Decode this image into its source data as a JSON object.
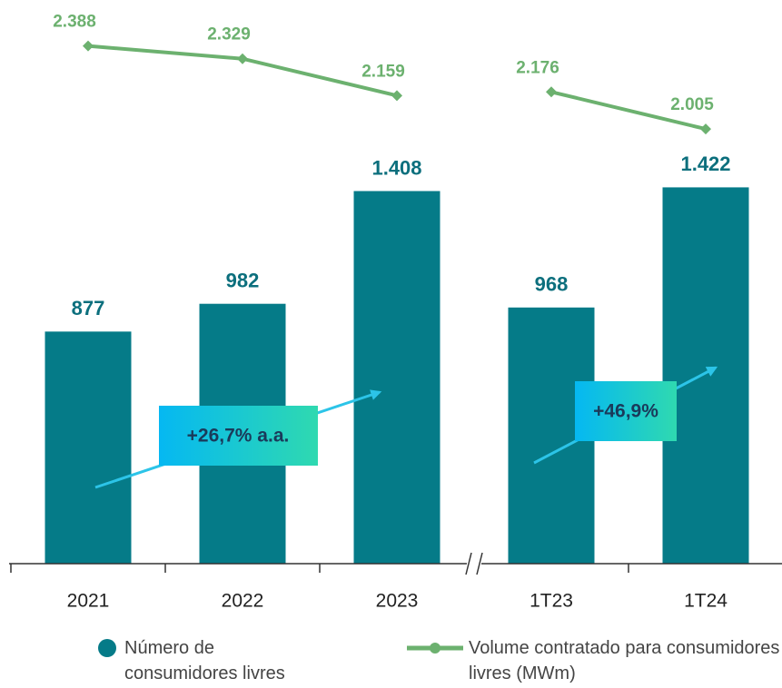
{
  "chart_data": {
    "type": "bar",
    "categories": [
      "2021",
      "2022",
      "2023",
      "1T23",
      "1T24"
    ],
    "axis_break_after": 2,
    "series": [
      {
        "name": "Número de consumidores livres",
        "color": "#057b88",
        "type": "bar",
        "values": [
          877,
          982,
          1408,
          968,
          1422
        ],
        "value_labels": [
          "877",
          "982",
          "1.408",
          "968",
          "1.422"
        ]
      },
      {
        "name": "Volume contratado para consumidores livres (MWm)",
        "color": "#6cb16f",
        "type": "line",
        "axis": "y2",
        "values": [
          2388,
          2329,
          2159,
          2176,
          2005
        ],
        "value_labels": [
          "2.388",
          "2.329",
          "2.159",
          "2.176",
          "2.005"
        ]
      }
    ],
    "ylim": [
      0,
      2130
    ],
    "y2lim": [
      0,
      2600
    ],
    "annotations": [
      "+26,7% a.a.",
      "+46,9%"
    ]
  }
}
